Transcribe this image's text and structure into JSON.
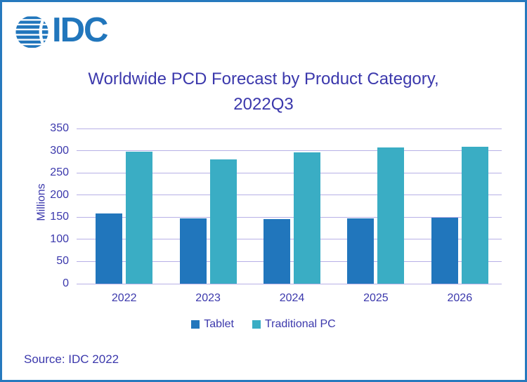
{
  "logo": {
    "text": "IDC",
    "globe_icon": "striped-globe-icon"
  },
  "title": {
    "line1": "Worldwide PCD Forecast by Product Category,",
    "line2": "2022Q3"
  },
  "source": {
    "label": "Source: IDC 2022"
  },
  "colors": {
    "text": "#3b38ac",
    "grid": "#b7b0e6",
    "border": "#2679be",
    "logo": "#2176bc",
    "bar_tablet": "#2176bc",
    "bar_traditional_pc": "#3aadc4"
  },
  "chart_data": {
    "type": "bar",
    "title": "Worldwide PCD Forecast by Product Category, 2022Q3",
    "categories": [
      "2022",
      "2023",
      "2024",
      "2025",
      "2026"
    ],
    "series": [
      {
        "name": "Tablet",
        "color": "#2176bc",
        "values": [
          159,
          147,
          145,
          147,
          149
        ]
      },
      {
        "name": "Traditional PC",
        "color": "#3aadc4",
        "values": [
          297,
          280,
          296,
          307,
          309
        ]
      }
    ],
    "xlabel": "",
    "ylabel": "Millions",
    "ylim": [
      0,
      350
    ],
    "ytick_step": 50,
    "yticks": [
      0,
      50,
      100,
      150,
      200,
      250,
      300,
      350
    ],
    "grid": true,
    "legend_position": "bottom"
  }
}
